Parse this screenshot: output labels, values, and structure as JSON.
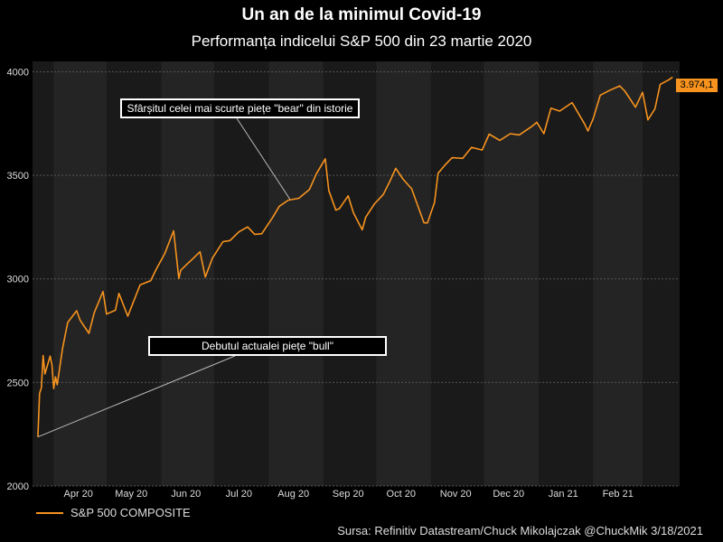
{
  "title": "Un an de la minimul Covid-19",
  "subtitle": "Performanța indicelui S&P 500 din 23 martie 2020",
  "source": "Sursa: Refinitiv Datastream/Chuck Mikolajczak @ChuckMik 3/18/2021",
  "colors": {
    "background": "#000000",
    "plot_band_dark": "#1a1a1a",
    "plot_band_light": "#242424",
    "series": "#f7931e",
    "annotation_border": "#ffffff"
  },
  "annotations": {
    "bear": "Sfârșitul celei mai scurte piețe \"bear\" din istorie",
    "bull": "Debutul actualei piețe \"bull\""
  },
  "last_value_label": "3.974,1",
  "chart_data": {
    "type": "line",
    "title": "Un an de la minimul Covid-19",
    "subtitle": "Performanța indicelui S&P 500 din 23 martie 2020",
    "ylim": [
      2000,
      4050
    ],
    "yticks": [
      "2000",
      "2500",
      "3000",
      "3500",
      "4000"
    ],
    "xticks": [
      "Apr 20",
      "May 20",
      "Jun 20",
      "Jul 20",
      "Aug 20",
      "Sep 20",
      "Oct 20",
      "Nov 20",
      "Dec 20",
      "Jan 21",
      "Feb 21"
    ],
    "grid": true,
    "legend_position": "bottom-left",
    "series": [
      {
        "name": "S&P 500 COMPOSITE",
        "x": [
          "2020-03-23",
          "2020-03-24",
          "2020-03-25",
          "2020-03-26",
          "2020-03-27",
          "2020-03-30",
          "2020-03-31",
          "2020-04-01",
          "2020-04-02",
          "2020-04-03",
          "2020-04-06",
          "2020-04-08",
          "2020-04-09",
          "2020-04-14",
          "2020-04-16",
          "2020-04-21",
          "2020-04-24",
          "2020-04-29",
          "2020-05-01",
          "2020-05-06",
          "2020-05-08",
          "2020-05-13",
          "2020-05-15",
          "2020-05-20",
          "2020-05-26",
          "2020-05-29",
          "2020-06-03",
          "2020-06-08",
          "2020-06-11",
          "2020-06-12",
          "2020-06-15",
          "2020-06-19",
          "2020-06-23",
          "2020-06-26",
          "2020-06-30",
          "2020-07-06",
          "2020-07-10",
          "2020-07-15",
          "2020-07-20",
          "2020-07-24",
          "2020-07-28",
          "2020-08-03",
          "2020-08-07",
          "2020-08-12",
          "2020-08-18",
          "2020-08-24",
          "2020-08-28",
          "2020-09-02",
          "2020-09-04",
          "2020-09-08",
          "2020-09-10",
          "2020-09-15",
          "2020-09-18",
          "2020-09-23",
          "2020-09-25",
          "2020-09-30",
          "2020-10-05",
          "2020-10-09",
          "2020-10-12",
          "2020-10-16",
          "2020-10-21",
          "2020-10-28",
          "2020-10-30",
          "2020-11-03",
          "2020-11-05",
          "2020-11-09",
          "2020-11-13",
          "2020-11-19",
          "2020-11-24",
          "2020-11-30",
          "2020-12-04",
          "2020-12-10",
          "2020-12-16",
          "2020-12-21",
          "2020-12-28",
          "2020-12-31",
          "2021-01-04",
          "2021-01-08",
          "2021-01-13",
          "2021-01-20",
          "2021-01-27",
          "2021-01-29",
          "2021-02-01",
          "2021-02-05",
          "2021-02-10",
          "2021-02-16",
          "2021-02-19",
          "2021-02-25",
          "2021-03-01",
          "2021-03-04",
          "2021-03-08",
          "2021-03-11",
          "2021-03-16",
          "2021-03-18"
        ],
        "values": [
          2237,
          2447,
          2475,
          2630,
          2541,
          2627,
          2585,
          2470,
          2527,
          2489,
          2664,
          2750,
          2790,
          2846,
          2800,
          2737,
          2837,
          2939,
          2830,
          2849,
          2930,
          2820,
          2863,
          2971,
          2991,
          3044,
          3122,
          3232,
          3002,
          3041,
          3066,
          3098,
          3131,
          3009,
          3100,
          3180,
          3185,
          3227,
          3251,
          3215,
          3218,
          3294,
          3351,
          3380,
          3389,
          3431,
          3508,
          3580,
          3427,
          3332,
          3339,
          3401,
          3319,
          3237,
          3298,
          3363,
          3408,
          3477,
          3534,
          3483,
          3435,
          3271,
          3270,
          3369,
          3510,
          3550,
          3585,
          3582,
          3635,
          3622,
          3699,
          3669,
          3701,
          3695,
          3735,
          3756,
          3701,
          3824,
          3810,
          3851,
          3750,
          3714,
          3774,
          3887,
          3909,
          3932,
          3906,
          3829,
          3901,
          3768,
          3821,
          3939,
          3962,
          3974
        ]
      }
    ]
  }
}
